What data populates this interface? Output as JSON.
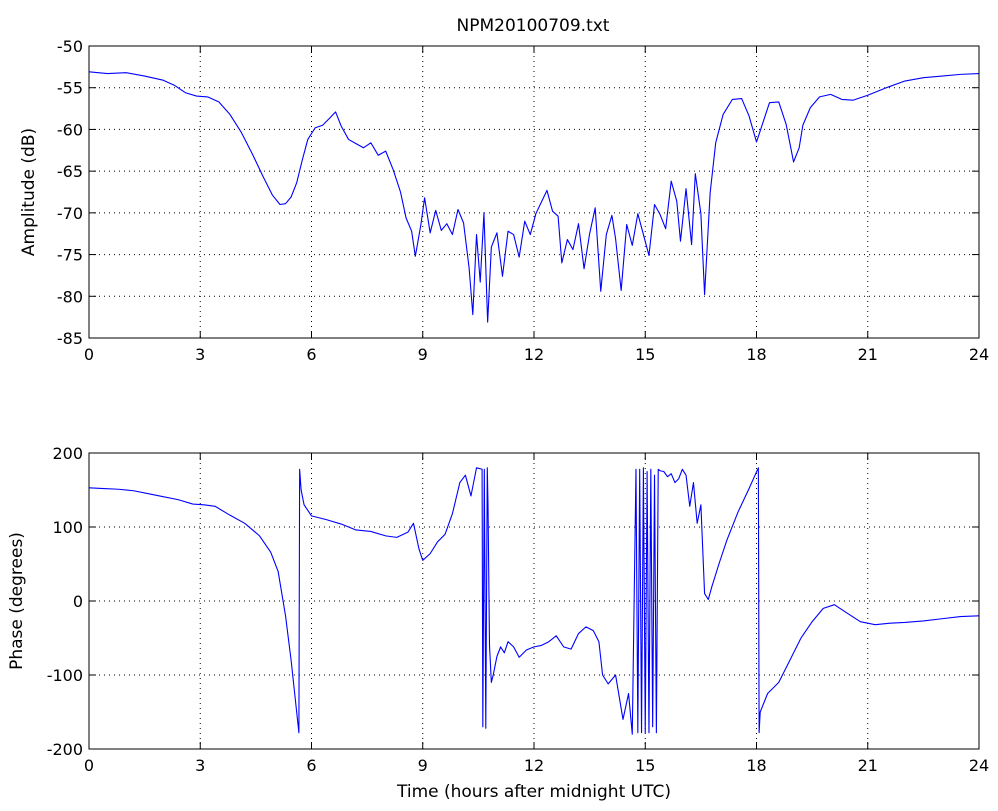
{
  "title": "NPM20100709.txt",
  "chart_data": [
    {
      "type": "line",
      "title": "NPM20100709.txt",
      "xlabel": "",
      "ylabel": "Amplitude (dB)",
      "xlim": [
        0,
        24
      ],
      "ylim": [
        -85,
        -50
      ],
      "xticks": [
        0,
        3,
        6,
        9,
        12,
        15,
        18,
        21,
        24
      ],
      "yticks": [
        -85,
        -80,
        -75,
        -70,
        -65,
        -60,
        -55,
        -50
      ],
      "xtick_labels": [
        "0",
        "3",
        "6",
        "9",
        "12",
        "15",
        "18",
        "21",
        "24"
      ],
      "ytick_labels": [
        "-85",
        "-80",
        "-75",
        "-70",
        "-65",
        "-60",
        "-55",
        "-50"
      ],
      "grid": true,
      "line_color": "#0000ff",
      "series": [
        {
          "x": [
            0,
            0.5,
            1.0,
            1.5,
            2.0,
            2.3,
            2.6,
            2.9,
            3.2,
            3.5,
            3.8,
            4.1,
            4.4,
            4.7,
            4.95,
            5.15,
            5.3,
            5.45,
            5.6,
            5.75,
            5.9,
            6.1,
            6.3,
            6.5,
            6.65,
            6.8,
            7.0,
            7.2,
            7.4,
            7.6,
            7.8,
            8.0,
            8.2,
            8.4,
            8.55,
            8.7,
            8.8,
            8.95,
            9.05,
            9.2,
            9.35,
            9.5,
            9.65,
            9.8,
            9.95,
            10.1,
            10.25,
            10.35,
            10.45,
            10.55,
            10.65,
            10.75,
            10.85,
            11.0,
            11.15,
            11.3,
            11.45,
            11.6,
            11.75,
            11.9,
            12.05,
            12.2,
            12.35,
            12.5,
            12.65,
            12.75,
            12.9,
            13.05,
            13.2,
            13.35,
            13.5,
            13.65,
            13.8,
            13.95,
            14.1,
            14.2,
            14.35,
            14.5,
            14.65,
            14.8,
            14.95,
            15.1,
            15.25,
            15.4,
            15.55,
            15.7,
            15.85,
            15.95,
            16.1,
            16.25,
            16.35,
            16.5,
            16.6,
            16.75,
            16.9,
            17.1,
            17.35,
            17.6,
            17.8,
            18.0,
            18.15,
            18.35,
            18.6,
            18.8,
            19.0,
            19.15,
            19.25,
            19.45,
            19.7,
            20.0,
            20.3,
            20.6,
            21.0,
            21.5,
            22.0,
            22.5,
            23.0,
            23.5,
            24.0
          ],
          "y": [
            -53.1,
            -53.3,
            -53.2,
            -53.6,
            -54.1,
            -54.7,
            -55.6,
            -56.0,
            -56.1,
            -56.7,
            -58.2,
            -60.3,
            -62.9,
            -65.7,
            -67.9,
            -69.0,
            -68.9,
            -68.1,
            -66.4,
            -63.7,
            -61.2,
            -59.8,
            -59.5,
            -58.6,
            -57.9,
            -59.6,
            -61.2,
            -61.7,
            -62.2,
            -61.6,
            -63.1,
            -62.6,
            -64.8,
            -67.5,
            -70.6,
            -72.2,
            -75.2,
            -71.4,
            -68.2,
            -72.4,
            -69.7,
            -72.1,
            -71.3,
            -72.6,
            -69.6,
            -71.2,
            -76.6,
            -82.2,
            -72.6,
            -78.3,
            -70.0,
            -83.1,
            -74.1,
            -72.4,
            -77.6,
            -72.2,
            -72.6,
            -75.3,
            -71.0,
            -72.6,
            -70.1,
            -68.7,
            -67.3,
            -69.8,
            -70.4,
            -76.0,
            -73.2,
            -74.4,
            -71.3,
            -76.7,
            -72.5,
            -69.4,
            -79.4,
            -72.6,
            -70.3,
            -73.1,
            -79.3,
            -71.4,
            -73.9,
            -70.1,
            -72.6,
            -75.1,
            -69.0,
            -70.2,
            -71.9,
            -66.2,
            -68.6,
            -73.4,
            -67.1,
            -73.8,
            -65.3,
            -70.1,
            -79.8,
            -67.6,
            -61.6,
            -58.2,
            -56.4,
            -56.3,
            -58.4,
            -61.5,
            -59.5,
            -56.8,
            -56.7,
            -59.4,
            -63.9,
            -62.2,
            -59.5,
            -57.4,
            -56.1,
            -55.8,
            -56.4,
            -56.5,
            -55.9,
            -55.0,
            -54.2,
            -53.8,
            -53.6,
            -53.4,
            -53.3
          ]
        }
      ]
    },
    {
      "type": "line",
      "title": "",
      "xlabel": "Time (hours after midnight UTC)",
      "ylabel": "Phase (degrees)",
      "xlim": [
        0,
        24
      ],
      "ylim": [
        -200,
        200
      ],
      "xticks": [
        0,
        3,
        6,
        9,
        12,
        15,
        18,
        21,
        24
      ],
      "yticks": [
        -200,
        -100,
        0,
        100,
        200
      ],
      "xtick_labels": [
        "0",
        "3",
        "6",
        "9",
        "12",
        "15",
        "18",
        "21",
        "24"
      ],
      "ytick_labels": [
        "-200",
        "-100",
        "0",
        "100",
        "200"
      ],
      "grid": true,
      "line_color": "#0000ff",
      "series": [
        {
          "x": [
            0,
            0.4,
            0.8,
            1.2,
            1.6,
            2.0,
            2.4,
            2.8,
            3.1,
            3.4,
            3.8,
            4.2,
            4.6,
            4.9,
            5.1,
            5.3,
            5.45,
            5.6,
            5.66,
            5.68,
            5.72,
            5.8,
            6.0,
            6.4,
            6.8,
            7.2,
            7.6,
            8.0,
            8.3,
            8.6,
            8.75,
            8.9,
            9.0,
            9.2,
            9.4,
            9.6,
            9.8,
            10.0,
            10.15,
            10.3,
            10.45,
            10.6,
            10.62,
            10.66,
            10.7,
            10.74,
            10.76,
            10.8,
            10.85,
            10.9,
            11.0,
            11.1,
            11.2,
            11.3,
            11.45,
            11.6,
            11.8,
            12.0,
            12.2,
            12.4,
            12.6,
            12.8,
            13.0,
            13.2,
            13.4,
            13.6,
            13.75,
            13.85,
            14.0,
            14.2,
            14.4,
            14.55,
            14.65,
            14.75,
            14.8,
            14.85,
            14.9,
            14.95,
            15.0,
            15.05,
            15.1,
            15.15,
            15.2,
            15.25,
            15.3,
            15.35,
            15.4,
            15.5,
            15.6,
            15.7,
            15.8,
            15.9,
            16.0,
            16.1,
            16.2,
            16.3,
            16.4,
            16.5,
            16.6,
            16.7,
            16.8,
            17.0,
            17.2,
            17.5,
            17.8,
            18.05,
            18.07,
            18.1,
            18.3,
            18.6,
            18.9,
            19.2,
            19.5,
            19.8,
            20.1,
            20.4,
            20.8,
            21.2,
            21.6,
            22.0,
            22.5,
            23.0,
            23.5,
            24.0
          ],
          "y": [
            153,
            152,
            151,
            149,
            145,
            141,
            137,
            131,
            130,
            128,
            116,
            105,
            88,
            66,
            40,
            -20,
            -80,
            -150,
            -178,
            178,
            150,
            130,
            115,
            110,
            104,
            96,
            94,
            88,
            86,
            93,
            105,
            70,
            55,
            64,
            80,
            90,
            118,
            160,
            170,
            142,
            180,
            178,
            -170,
            178,
            -172,
            180,
            130,
            -60,
            -110,
            -100,
            -75,
            -62,
            -70,
            -55,
            -62,
            -76,
            -66,
            -62,
            -60,
            -55,
            -47,
            -62,
            -65,
            -44,
            -35,
            -40,
            -55,
            -100,
            -112,
            -100,
            -160,
            -125,
            -180,
            178,
            -178,
            178,
            -178,
            180,
            -178,
            175,
            -178,
            178,
            -170,
            170,
            -178,
            178,
            176,
            175,
            168,
            172,
            160,
            165,
            178,
            170,
            128,
            160,
            105,
            130,
            10,
            2,
            20,
            52,
            82,
            120,
            152,
            180,
            -178,
            -150,
            -125,
            -110,
            -80,
            -50,
            -28,
            -10,
            -5,
            -15,
            -28,
            -32,
            -30,
            -29,
            -27,
            -24,
            -21,
            -20
          ]
        }
      ]
    }
  ]
}
